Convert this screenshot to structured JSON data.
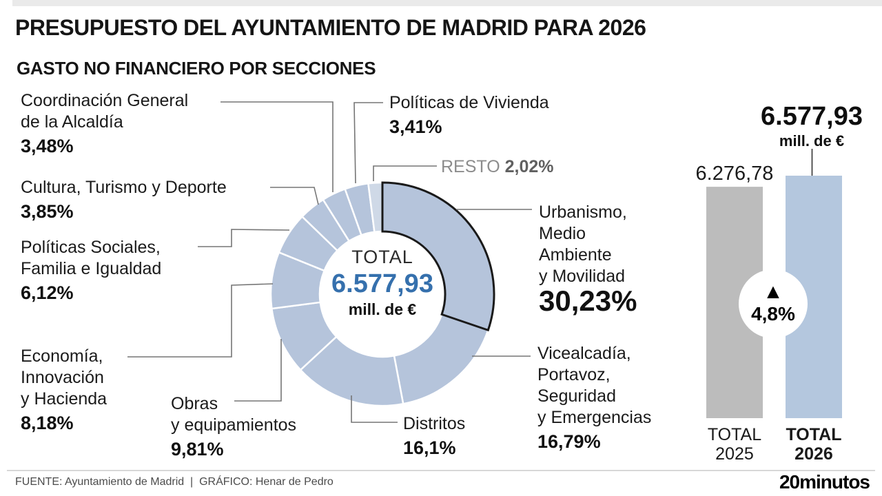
{
  "header": {
    "title": "PRESUPUESTO DEL AYUNTAMIENTO DE MADRID PARA 2026",
    "subtitle": "GASTO NO FINANCIERO POR SECCIONES"
  },
  "chart_data": [
    {
      "type": "pie",
      "subtype": "donut",
      "title": "GASTO NO FINANCIERO POR SECCIONES",
      "center": {
        "label": "TOTAL",
        "value": "6.577,93",
        "unit": "mill. de €"
      },
      "slices": [
        {
          "label": "Urbanismo, Medio Ambiente y Movilidad",
          "value": 30.23,
          "pct_label": "30,23%",
          "label_lines": [
            "Urbanismo,",
            "Medio",
            "Ambiente",
            "y Movilidad"
          ],
          "highlight": true
        },
        {
          "label": "Vicealcadía, Portavoz, Seguridad y Emergencias",
          "value": 16.79,
          "pct_label": "16,79%",
          "label_lines": [
            "Vicealcadía,",
            "Portavoz,",
            "Seguridad",
            "y Emergencias"
          ]
        },
        {
          "label": "Distritos",
          "value": 16.1,
          "pct_label": "16,1%",
          "label_lines": [
            "Distritos"
          ]
        },
        {
          "label": "Obras y equipamientos",
          "value": 9.81,
          "pct_label": "9,81%",
          "label_lines": [
            "Obras",
            "y equipamientos"
          ]
        },
        {
          "label": "Economía, Innovación y Hacienda",
          "value": 8.18,
          "pct_label": "8,18%",
          "label_lines": [
            "Economía,",
            "Innovación",
            "y Hacienda"
          ]
        },
        {
          "label": "Políticas Sociales, Familia e Igualdad",
          "value": 6.12,
          "pct_label": "6,12%",
          "label_lines": [
            "Políticas Sociales,",
            "Familia e Igualdad"
          ]
        },
        {
          "label": "Cultura, Turismo y Deporte",
          "value": 3.85,
          "pct_label": "3,85%",
          "label_lines": [
            "Cultura, Turismo y Deporte"
          ]
        },
        {
          "label": "Coordinación General de la Alcaldía",
          "value": 3.48,
          "pct_label": "3,48%",
          "label_lines": [
            "Coordinación General",
            "de la Alcaldía"
          ]
        },
        {
          "label": "Políticas de Vivienda",
          "value": 3.41,
          "pct_label": "3,41%",
          "label_lines": [
            "Políticas de Vivienda"
          ]
        },
        {
          "label": "RESTO",
          "value": 2.02,
          "pct_label": "2,02%",
          "label_lines": [
            "RESTO"
          ],
          "is_resto": true
        }
      ],
      "colors": {
        "slice": "#b5c4db",
        "resto": "#cfd9e7",
        "highlight_outline": "#1a1a1a",
        "center_value": "#3570ad"
      }
    },
    {
      "type": "bar",
      "categories": [
        "TOTAL 2025",
        "TOTAL 2026"
      ],
      "axis_labels": [
        [
          "TOTAL",
          "2025"
        ],
        [
          "TOTAL",
          "2026"
        ]
      ],
      "values": [
        6276.78,
        6577.93
      ],
      "value_labels": [
        "6.276,78",
        "6.577,93"
      ],
      "unit_label": "mill. de €",
      "change_badge": {
        "symbol": "▲",
        "label": "4,8%",
        "direction": "up"
      },
      "colors": {
        "bar_2025": "#bcbcbc",
        "bar_2026": "#b4c7de"
      },
      "ylim": [
        0,
        6577.93
      ]
    }
  ],
  "footer": {
    "source": "FUENTE: Ayuntamiento de Madrid  |  GRÁFICO: Henar de Pedro",
    "logo": "20minutos"
  }
}
